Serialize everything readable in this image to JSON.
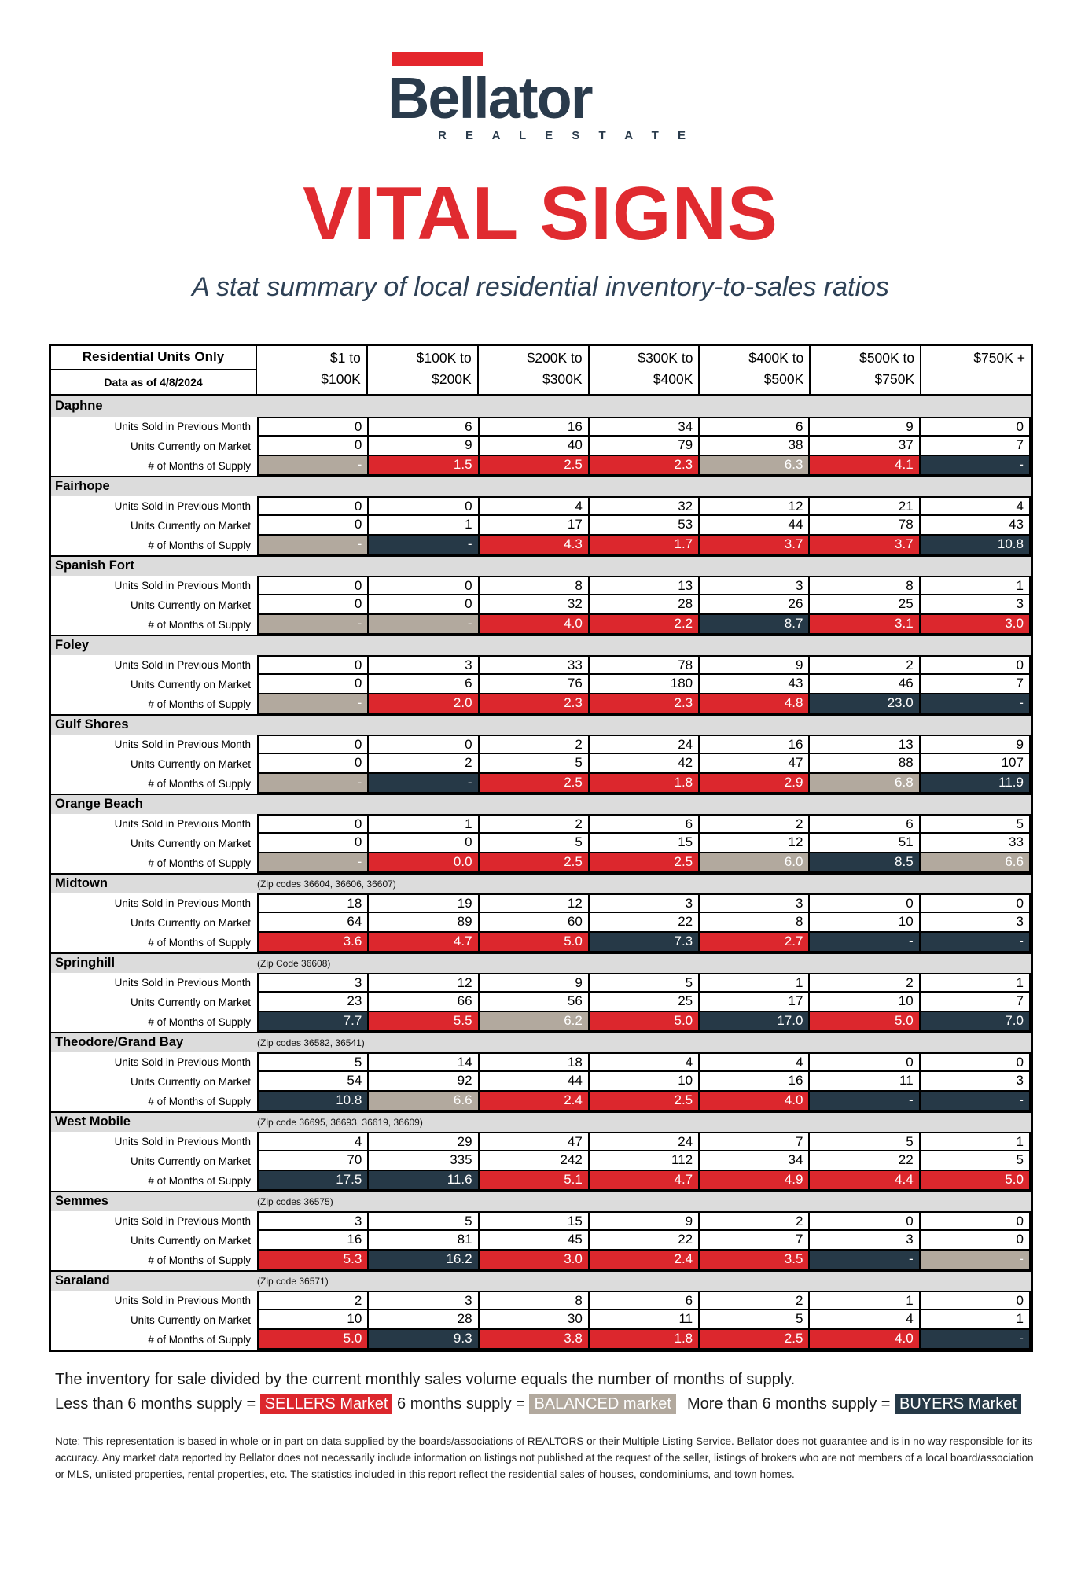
{
  "brand": {
    "name": "Bellator",
    "tagline": "R E A L   E S T A T E",
    "red": "#E4262C",
    "navy": "#2A3B4C"
  },
  "title": "VITAL SIGNS",
  "subtitle": "A stat summary of local residential inventory-to-sales ratios",
  "market_colors": {
    "sellers": "#DC272D",
    "balanced": "#B2A99E",
    "buyers": "#263947"
  },
  "table": {
    "corner_title": "Residential Units Only",
    "corner_subtitle": "Data as of 4/8/2024",
    "price_columns": [
      {
        "line1": "$1 to",
        "line2": "$100K"
      },
      {
        "line1": "$100K to",
        "line2": "$200K"
      },
      {
        "line1": "$200K to",
        "line2": "$300K"
      },
      {
        "line1": "$300K to",
        "line2": "$400K"
      },
      {
        "line1": "$400K to",
        "line2": "$500K"
      },
      {
        "line1": "$500K to",
        "line2": "$750K"
      },
      {
        "line1": "$750K +",
        "line2": ""
      }
    ],
    "row_labels": [
      "Units Sold in Previous Month",
      "Units Currently on Market",
      "# of Months of Supply"
    ],
    "areas": [
      {
        "name": "Daphne",
        "zip_note": "",
        "units_sold": [
          "0",
          "6",
          "16",
          "34",
          "6",
          "9",
          "0"
        ],
        "units_on_market": [
          "0",
          "9",
          "40",
          "79",
          "38",
          "37",
          "7"
        ],
        "supply": [
          {
            "v": "-",
            "c": "balanced"
          },
          {
            "v": "1.5",
            "c": "sellers"
          },
          {
            "v": "2.5",
            "c": "sellers"
          },
          {
            "v": "2.3",
            "c": "sellers"
          },
          {
            "v": "6.3",
            "c": "balanced"
          },
          {
            "v": "4.1",
            "c": "sellers"
          },
          {
            "v": "-",
            "c": "buyers"
          }
        ]
      },
      {
        "name": "Fairhope",
        "zip_note": "",
        "units_sold": [
          "0",
          "0",
          "4",
          "32",
          "12",
          "21",
          "4"
        ],
        "units_on_market": [
          "0",
          "1",
          "17",
          "53",
          "44",
          "78",
          "43"
        ],
        "supply": [
          {
            "v": "-",
            "c": "balanced"
          },
          {
            "v": "-",
            "c": "buyers"
          },
          {
            "v": "4.3",
            "c": "sellers"
          },
          {
            "v": "1.7",
            "c": "sellers"
          },
          {
            "v": "3.7",
            "c": "sellers"
          },
          {
            "v": "3.7",
            "c": "sellers"
          },
          {
            "v": "10.8",
            "c": "buyers"
          }
        ]
      },
      {
        "name": "Spanish Fort",
        "zip_note": "",
        "units_sold": [
          "0",
          "0",
          "8",
          "13",
          "3",
          "8",
          "1"
        ],
        "units_on_market": [
          "0",
          "0",
          "32",
          "28",
          "26",
          "25",
          "3"
        ],
        "supply": [
          {
            "v": "-",
            "c": "balanced"
          },
          {
            "v": "-",
            "c": "balanced"
          },
          {
            "v": "4.0",
            "c": "sellers"
          },
          {
            "v": "2.2",
            "c": "sellers"
          },
          {
            "v": "8.7",
            "c": "buyers"
          },
          {
            "v": "3.1",
            "c": "sellers"
          },
          {
            "v": "3.0",
            "c": "sellers"
          }
        ]
      },
      {
        "name": "Foley",
        "zip_note": "",
        "units_sold": [
          "0",
          "3",
          "33",
          "78",
          "9",
          "2",
          "0"
        ],
        "units_on_market": [
          "0",
          "6",
          "76",
          "180",
          "43",
          "46",
          "7"
        ],
        "supply": [
          {
            "v": "-",
            "c": "balanced"
          },
          {
            "v": "2.0",
            "c": "sellers"
          },
          {
            "v": "2.3",
            "c": "sellers"
          },
          {
            "v": "2.3",
            "c": "sellers"
          },
          {
            "v": "4.8",
            "c": "sellers"
          },
          {
            "v": "23.0",
            "c": "buyers"
          },
          {
            "v": "-",
            "c": "buyers"
          }
        ]
      },
      {
        "name": "Gulf Shores",
        "zip_note": "",
        "units_sold": [
          "0",
          "0",
          "2",
          "24",
          "16",
          "13",
          "9"
        ],
        "units_on_market": [
          "0",
          "2",
          "5",
          "42",
          "47",
          "88",
          "107"
        ],
        "supply": [
          {
            "v": "-",
            "c": "balanced"
          },
          {
            "v": "-",
            "c": "buyers"
          },
          {
            "v": "2.5",
            "c": "sellers"
          },
          {
            "v": "1.8",
            "c": "sellers"
          },
          {
            "v": "2.9",
            "c": "sellers"
          },
          {
            "v": "6.8",
            "c": "balanced"
          },
          {
            "v": "11.9",
            "c": "buyers"
          }
        ]
      },
      {
        "name": "Orange Beach",
        "zip_note": "",
        "units_sold": [
          "0",
          "1",
          "2",
          "6",
          "2",
          "6",
          "5"
        ],
        "units_on_market": [
          "0",
          "0",
          "5",
          "15",
          "12",
          "51",
          "33"
        ],
        "supply": [
          {
            "v": "-",
            "c": "balanced"
          },
          {
            "v": "0.0",
            "c": "sellers"
          },
          {
            "v": "2.5",
            "c": "sellers"
          },
          {
            "v": "2.5",
            "c": "sellers"
          },
          {
            "v": "6.0",
            "c": "balanced"
          },
          {
            "v": "8.5",
            "c": "buyers"
          },
          {
            "v": "6.6",
            "c": "balanced"
          }
        ]
      },
      {
        "name": "Midtown",
        "zip_note": "(Zip codes 36604, 36606, 36607)",
        "units_sold": [
          "18",
          "19",
          "12",
          "3",
          "3",
          "0",
          "0"
        ],
        "units_on_market": [
          "64",
          "89",
          "60",
          "22",
          "8",
          "10",
          "3"
        ],
        "supply": [
          {
            "v": "3.6",
            "c": "sellers"
          },
          {
            "v": "4.7",
            "c": "sellers"
          },
          {
            "v": "5.0",
            "c": "sellers"
          },
          {
            "v": "7.3",
            "c": "buyers"
          },
          {
            "v": "2.7",
            "c": "sellers"
          },
          {
            "v": "-",
            "c": "buyers"
          },
          {
            "v": "-",
            "c": "buyers"
          }
        ]
      },
      {
        "name": "Springhill",
        "zip_note": "(Zip Code 36608)",
        "units_sold": [
          "3",
          "12",
          "9",
          "5",
          "1",
          "2",
          "1"
        ],
        "units_on_market": [
          "23",
          "66",
          "56",
          "25",
          "17",
          "10",
          "7"
        ],
        "supply": [
          {
            "v": "7.7",
            "c": "buyers"
          },
          {
            "v": "5.5",
            "c": "sellers"
          },
          {
            "v": "6.2",
            "c": "balanced"
          },
          {
            "v": "5.0",
            "c": "sellers"
          },
          {
            "v": "17.0",
            "c": "buyers"
          },
          {
            "v": "5.0",
            "c": "sellers"
          },
          {
            "v": "7.0",
            "c": "buyers"
          }
        ]
      },
      {
        "name": "Theodore/Grand Bay",
        "zip_note": "(Zip codes 36582, 36541)",
        "units_sold": [
          "5",
          "14",
          "18",
          "4",
          "4",
          "0",
          "0"
        ],
        "units_on_market": [
          "54",
          "92",
          "44",
          "10",
          "16",
          "11",
          "3"
        ],
        "supply": [
          {
            "v": "10.8",
            "c": "buyers"
          },
          {
            "v": "6.6",
            "c": "balanced"
          },
          {
            "v": "2.4",
            "c": "sellers"
          },
          {
            "v": "2.5",
            "c": "sellers"
          },
          {
            "v": "4.0",
            "c": "sellers"
          },
          {
            "v": "-",
            "c": "buyers"
          },
          {
            "v": "-",
            "c": "buyers"
          }
        ]
      },
      {
        "name": "West Mobile",
        "zip_note": "(Zip code 36695, 36693, 36619, 36609)",
        "units_sold": [
          "4",
          "29",
          "47",
          "24",
          "7",
          "5",
          "1"
        ],
        "units_on_market": [
          "70",
          "335",
          "242",
          "112",
          "34",
          "22",
          "5"
        ],
        "supply": [
          {
            "v": "17.5",
            "c": "buyers"
          },
          {
            "v": "11.6",
            "c": "buyers"
          },
          {
            "v": "5.1",
            "c": "sellers"
          },
          {
            "v": "4.7",
            "c": "sellers"
          },
          {
            "v": "4.9",
            "c": "sellers"
          },
          {
            "v": "4.4",
            "c": "sellers"
          },
          {
            "v": "5.0",
            "c": "sellers"
          }
        ]
      },
      {
        "name": "Semmes",
        "zip_note": "(Zip codes 36575)",
        "units_sold": [
          "3",
          "5",
          "15",
          "9",
          "2",
          "0",
          "0"
        ],
        "units_on_market": [
          "16",
          "81",
          "45",
          "22",
          "7",
          "3",
          "0"
        ],
        "supply": [
          {
            "v": "5.3",
            "c": "sellers"
          },
          {
            "v": "16.2",
            "c": "buyers"
          },
          {
            "v": "3.0",
            "c": "sellers"
          },
          {
            "v": "2.4",
            "c": "sellers"
          },
          {
            "v": "3.5",
            "c": "sellers"
          },
          {
            "v": "-",
            "c": "buyers"
          },
          {
            "v": "-",
            "c": "balanced"
          }
        ]
      },
      {
        "name": "Saraland",
        "zip_note": "(Zip code 36571)",
        "units_sold": [
          "2",
          "3",
          "8",
          "6",
          "2",
          "1",
          "0"
        ],
        "units_on_market": [
          "10",
          "28",
          "30",
          "11",
          "5",
          "4",
          "1"
        ],
        "supply": [
          {
            "v": "5.0",
            "c": "sellers"
          },
          {
            "v": "9.3",
            "c": "buyers"
          },
          {
            "v": "3.8",
            "c": "sellers"
          },
          {
            "v": "1.8",
            "c": "sellers"
          },
          {
            "v": "2.5",
            "c": "sellers"
          },
          {
            "v": "4.0",
            "c": "sellers"
          },
          {
            "v": "-",
            "c": "buyers"
          }
        ]
      }
    ]
  },
  "legend": {
    "intro": "The inventory for sale divided by the current monthly sales volume equals the number of months of supply.",
    "less_label": "Less than 6 months supply =",
    "sellers_tag": "SELLERS Market",
    "six_label": "6 months supply =",
    "balanced_tag": "BALANCED market",
    "more_label": "More than 6 months supply =",
    "buyers_tag": "BUYERS Market"
  },
  "note": "Note: This representation is based in whole or in part on data supplied by the boards/associations of REALTORS or their Multiple Listing Service. Bellator does not guarantee and is in no way responsible for its accuracy. Any market data reported by Bellator does not necessarily include information on listings not published at the request of the seller, listings of brokers who are not members of a local board/association or MLS, unlisted properties, rental properties, etc. The statistics included in this report reflect the residential sales of houses, condominiums, and town homes."
}
